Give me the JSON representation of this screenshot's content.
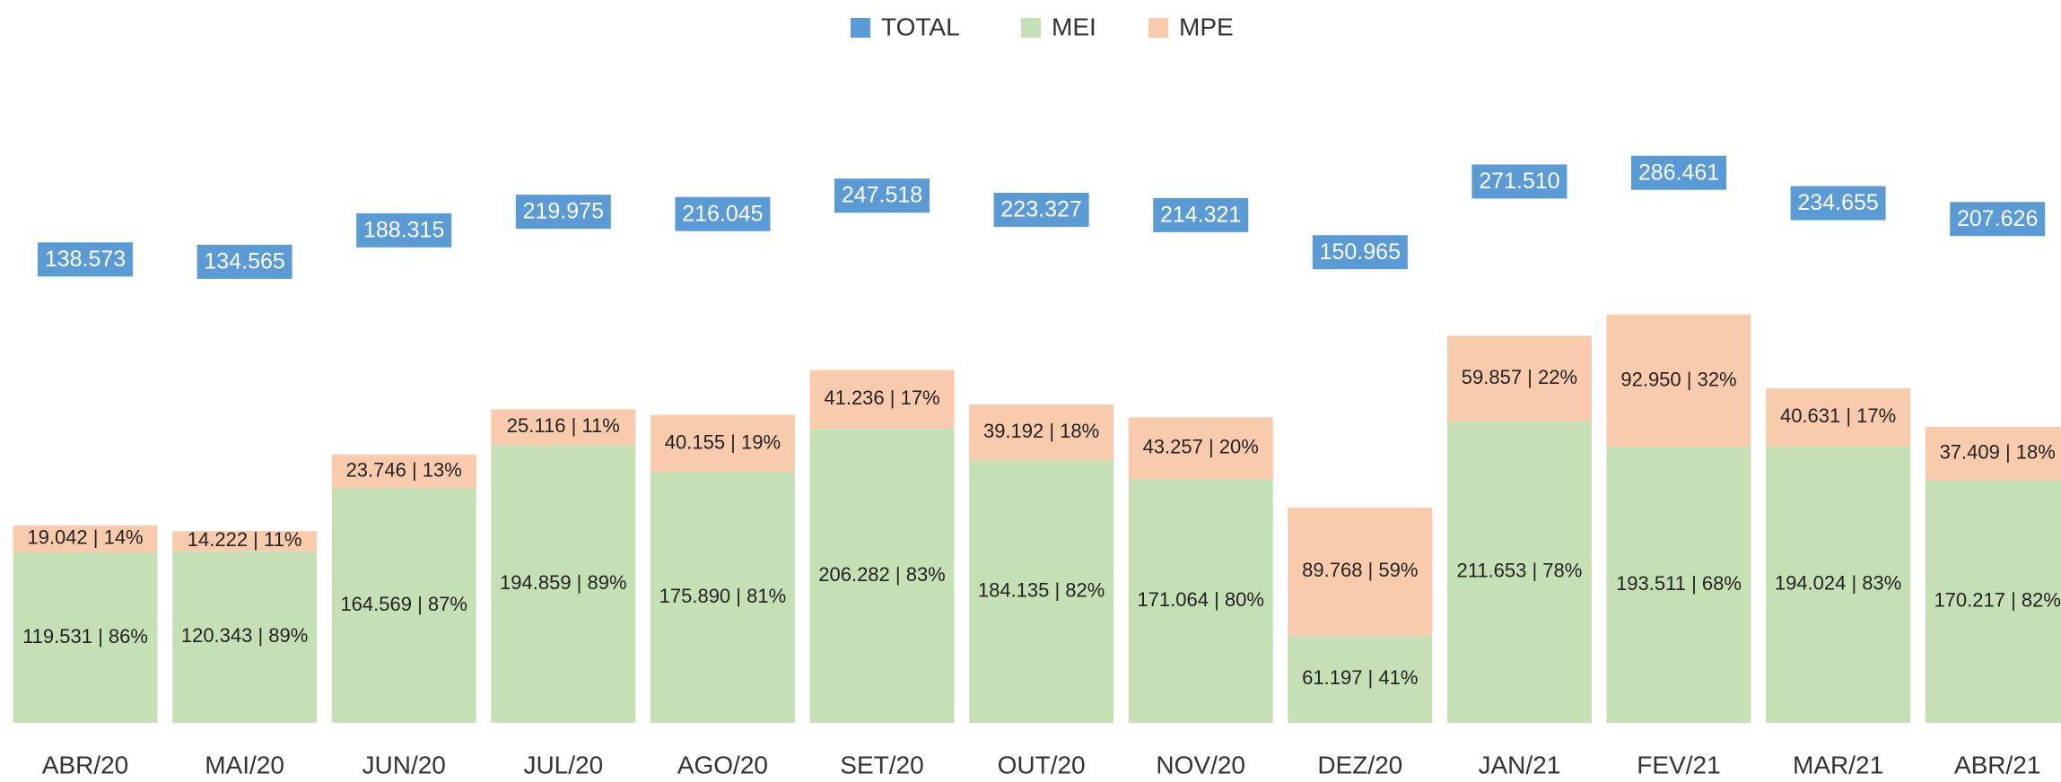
{
  "chart_data": {
    "type": "bar",
    "stacked": true,
    "legend": "top",
    "categories": [
      "ABR/20",
      "MAI/20",
      "JUN/20",
      "JUL/20",
      "AGO/20",
      "SET/20",
      "OUT/20",
      "NOV/20",
      "DEZ/20",
      "JAN/21",
      "FEV/21",
      "MAR/21",
      "ABR/21"
    ],
    "ylim": [
      0,
      470000
    ],
    "y2lim": [
      -652000,
      491000
    ],
    "series": [
      {
        "name": "TOTAL",
        "color": "#5b9bd5",
        "axis": "y2",
        "values": [
          138573,
          134565,
          188315,
          219975,
          216045,
          247518,
          223327,
          214321,
          150965,
          271510,
          286461,
          234655,
          207626
        ],
        "value_labels": [
          "138.573",
          "134.565",
          "188.315",
          "219.975",
          "216.045",
          "247.518",
          "223.327",
          "214.321",
          "150.965",
          "271.510",
          "286.461",
          "234.655",
          "207.626"
        ]
      },
      {
        "name": "MEI",
        "color": "#c5e0b4",
        "values": [
          119531,
          120343,
          164569,
          194859,
          175890,
          206282,
          184135,
          171064,
          61197,
          211653,
          193511,
          194024,
          170217
        ],
        "value_labels": [
          "119.531 | 86%",
          "120.343 | 89%",
          "164.569 | 87%",
          "194.859 | 89%",
          "175.890 | 81%",
          "206.282 | 83%",
          "184.135 | 82%",
          "171.064 | 80%",
          "61.197 | 41%",
          "211.653 | 78%",
          "193.511 | 68%",
          "194.024 | 83%",
          "170.217 | 82%"
        ]
      },
      {
        "name": "MPE",
        "color": "#f8cbad",
        "values": [
          19042,
          14222,
          23746,
          25116,
          40155,
          41236,
          39192,
          43257,
          89768,
          59857,
          92950,
          40631,
          37409
        ],
        "value_labels": [
          "19.042 | 14%",
          "14.222 | 11%",
          "23.746 | 13%",
          "25.116 | 11%",
          "40.155 | 19%",
          "41.236 | 17%",
          "39.192 | 18%",
          "43.257 | 20%",
          "89.768 | 59%",
          "59.857 | 22%",
          "92.950 | 32%",
          "40.631 | 17%",
          "37.409 | 18%"
        ]
      }
    ]
  }
}
